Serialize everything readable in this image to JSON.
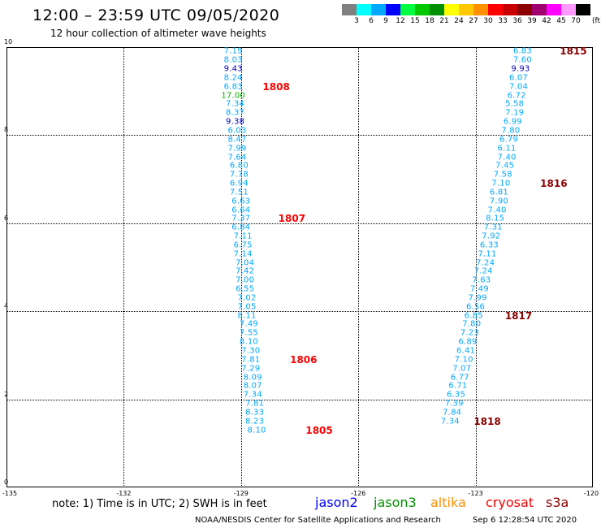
{
  "header": {
    "title": "12:00 – 23:59 UTC 09/05/2020",
    "subtitle": "12 hour collection of altimeter wave heights"
  },
  "legend": {
    "colors": [
      "#808080",
      "#00ffff",
      "#00a8ff",
      "#0000ff",
      "#00ff40",
      "#00c800",
      "#009000",
      "#ffff00",
      "#ffc800",
      "#ff9000",
      "#ff0000",
      "#c80000",
      "#8b0000",
      "#a00070",
      "#ff00ff",
      "#ff99ff",
      "#000000"
    ],
    "labels": [
      "3",
      "6",
      "9",
      "12",
      "15",
      "18",
      "21",
      "24",
      "27",
      "30",
      "33",
      "36",
      "39",
      "42",
      "45",
      "70"
    ],
    "unit": "(ft)"
  },
  "axes": {
    "x_ticks": [
      "-135",
      "-132",
      "-129",
      "-126",
      "-123",
      "-120"
    ],
    "y_ticks": [
      "10",
      "8",
      "6",
      "4",
      "2",
      "0"
    ]
  },
  "map_data": {
    "type": "altimeter_track_map",
    "x_range": [
      -135,
      -120
    ],
    "y_range": [
      0,
      10
    ],
    "tracks": [
      {
        "name": "track-west",
        "points": [
          {
            "lon": -129.2,
            "lat": 9.9,
            "v": "7.19",
            "c": "#00a8ff"
          },
          {
            "lon": -129.2,
            "lat": 9.7,
            "v": "8.03",
            "c": "#00a8ff"
          },
          {
            "lon": -129.2,
            "lat": 9.5,
            "v": "9.43",
            "c": "#0000c0"
          },
          {
            "lon": -129.2,
            "lat": 9.3,
            "v": "8.24",
            "c": "#00a8ff"
          },
          {
            "lon": -129.2,
            "lat": 9.1,
            "v": "6.83",
            "c": "#00a8ff"
          },
          {
            "lon": -129.2,
            "lat": 8.9,
            "v": "17.00",
            "c": "#00b000"
          },
          {
            "lon": -129.15,
            "lat": 8.7,
            "v": "7.34",
            "c": "#00a8ff"
          },
          {
            "lon": -129.15,
            "lat": 8.5,
            "v": "8.37",
            "c": "#00a8ff"
          },
          {
            "lon": -129.15,
            "lat": 8.3,
            "v": "9.38",
            "c": "#0000c0"
          },
          {
            "lon": -129.1,
            "lat": 8.1,
            "v": "6.03",
            "c": "#00a8ff"
          },
          {
            "lon": -129.1,
            "lat": 7.9,
            "v": "8.47",
            "c": "#00a8ff"
          },
          {
            "lon": -129.1,
            "lat": 7.7,
            "v": "7.99",
            "c": "#00a8ff"
          },
          {
            "lon": -129.1,
            "lat": 7.5,
            "v": "7.64",
            "c": "#00a8ff"
          },
          {
            "lon": -129.05,
            "lat": 7.3,
            "v": "6.80",
            "c": "#00a8ff"
          },
          {
            "lon": -129.05,
            "lat": 7.1,
            "v": "7.78",
            "c": "#00a8ff"
          },
          {
            "lon": -129.05,
            "lat": 6.9,
            "v": "6.94",
            "c": "#00a8ff"
          },
          {
            "lon": -129.05,
            "lat": 6.7,
            "v": "7.51",
            "c": "#00a8ff"
          },
          {
            "lon": -129.0,
            "lat": 6.5,
            "v": "6.63",
            "c": "#00a8ff"
          },
          {
            "lon": -129.0,
            "lat": 6.3,
            "v": "6.64",
            "c": "#00a8ff"
          },
          {
            "lon": -129.0,
            "lat": 6.1,
            "v": "7.37",
            "c": "#00a8ff"
          },
          {
            "lon": -129.0,
            "lat": 5.9,
            "v": "6.84",
            "c": "#00a8ff"
          },
          {
            "lon": -128.95,
            "lat": 5.7,
            "v": "7.11",
            "c": "#00a8ff"
          },
          {
            "lon": -128.95,
            "lat": 5.5,
            "v": "6.75",
            "c": "#00a8ff"
          },
          {
            "lon": -128.95,
            "lat": 5.3,
            "v": "7.14",
            "c": "#00a8ff"
          },
          {
            "lon": -128.9,
            "lat": 5.1,
            "v": "7.04",
            "c": "#00a8ff"
          },
          {
            "lon": -128.9,
            "lat": 4.9,
            "v": "7.42",
            "c": "#00a8ff"
          },
          {
            "lon": -128.9,
            "lat": 4.7,
            "v": "7.00",
            "c": "#00a8ff"
          },
          {
            "lon": -128.9,
            "lat": 4.5,
            "v": "6.55",
            "c": "#00a8ff"
          },
          {
            "lon": -128.85,
            "lat": 4.3,
            "v": "7.02",
            "c": "#00a8ff"
          },
          {
            "lon": -128.85,
            "lat": 4.1,
            "v": "7.05",
            "c": "#00a8ff"
          },
          {
            "lon": -128.85,
            "lat": 3.9,
            "v": "8.11",
            "c": "#00a8ff"
          },
          {
            "lon": -128.8,
            "lat": 3.7,
            "v": "7.49",
            "c": "#00a8ff"
          },
          {
            "lon": -128.8,
            "lat": 3.5,
            "v": "7.55",
            "c": "#00a8ff"
          },
          {
            "lon": -128.8,
            "lat": 3.3,
            "v": "8.10",
            "c": "#00a8ff"
          },
          {
            "lon": -128.75,
            "lat": 3.1,
            "v": "7.30",
            "c": "#00a8ff"
          },
          {
            "lon": -128.75,
            "lat": 2.9,
            "v": "7.81",
            "c": "#00a8ff"
          },
          {
            "lon": -128.75,
            "lat": 2.7,
            "v": "7.29",
            "c": "#00a8ff"
          },
          {
            "lon": -128.7,
            "lat": 2.5,
            "v": "8.09",
            "c": "#00a8ff"
          },
          {
            "lon": -128.7,
            "lat": 2.3,
            "v": "8.07",
            "c": "#00a8ff"
          },
          {
            "lon": -128.7,
            "lat": 2.1,
            "v": "7.34",
            "c": "#00a8ff"
          },
          {
            "lon": -128.65,
            "lat": 1.9,
            "v": "7.81",
            "c": "#00a8ff"
          },
          {
            "lon": -128.65,
            "lat": 1.7,
            "v": "8.33",
            "c": "#00a8ff"
          },
          {
            "lon": -128.65,
            "lat": 1.5,
            "v": "8.23",
            "c": "#00a8ff"
          },
          {
            "lon": -128.6,
            "lat": 1.3,
            "v": "8.10",
            "c": "#00a8ff"
          }
        ]
      },
      {
        "name": "track-east",
        "points": [
          {
            "lon": -121.8,
            "lat": 9.9,
            "v": "6.83",
            "c": "#00a8ff"
          },
          {
            "lon": -121.8,
            "lat": 9.7,
            "v": "7.60",
            "c": "#00a8ff"
          },
          {
            "lon": -121.85,
            "lat": 9.5,
            "v": "9.93",
            "c": "#0000c0"
          },
          {
            "lon": -121.9,
            "lat": 9.3,
            "v": "6.07",
            "c": "#00a8ff"
          },
          {
            "lon": -121.9,
            "lat": 9.1,
            "v": "7.04",
            "c": "#00a8ff"
          },
          {
            "lon": -121.95,
            "lat": 8.9,
            "v": "6.72",
            "c": "#00a8ff"
          },
          {
            "lon": -122.0,
            "lat": 8.7,
            "v": "5.58",
            "c": "#00a8ff"
          },
          {
            "lon": -122.0,
            "lat": 8.5,
            "v": "7.19",
            "c": "#00a8ff"
          },
          {
            "lon": -122.05,
            "lat": 8.3,
            "v": "6.99",
            "c": "#00a8ff"
          },
          {
            "lon": -122.1,
            "lat": 8.1,
            "v": "7.80",
            "c": "#00a8ff"
          },
          {
            "lon": -122.15,
            "lat": 7.9,
            "v": "6.79",
            "c": "#00a8ff"
          },
          {
            "lon": -122.2,
            "lat": 7.7,
            "v": "6.11",
            "c": "#00a8ff"
          },
          {
            "lon": -122.2,
            "lat": 7.5,
            "v": "7.40",
            "c": "#00a8ff"
          },
          {
            "lon": -122.25,
            "lat": 7.3,
            "v": "7.45",
            "c": "#00a8ff"
          },
          {
            "lon": -122.3,
            "lat": 7.1,
            "v": "7.58",
            "c": "#00a8ff"
          },
          {
            "lon": -122.35,
            "lat": 6.9,
            "v": "7.10",
            "c": "#00a8ff"
          },
          {
            "lon": -122.4,
            "lat": 6.7,
            "v": "6.81",
            "c": "#00a8ff"
          },
          {
            "lon": -122.4,
            "lat": 6.5,
            "v": "7.90",
            "c": "#00a8ff"
          },
          {
            "lon": -122.45,
            "lat": 6.3,
            "v": "7.40",
            "c": "#00a8ff"
          },
          {
            "lon": -122.5,
            "lat": 6.1,
            "v": "8.15",
            "c": "#00a8ff"
          },
          {
            "lon": -122.55,
            "lat": 5.9,
            "v": "7.31",
            "c": "#00a8ff"
          },
          {
            "lon": -122.6,
            "lat": 5.7,
            "v": "7.92",
            "c": "#00a8ff"
          },
          {
            "lon": -122.65,
            "lat": 5.5,
            "v": "6.33",
            "c": "#00a8ff"
          },
          {
            "lon": -122.7,
            "lat": 5.3,
            "v": "7.11",
            "c": "#00a8ff"
          },
          {
            "lon": -122.75,
            "lat": 5.1,
            "v": "7.24",
            "c": "#00a8ff"
          },
          {
            "lon": -122.8,
            "lat": 4.9,
            "v": "7.24",
            "c": "#00a8ff"
          },
          {
            "lon": -122.85,
            "lat": 4.7,
            "v": "7.63",
            "c": "#00a8ff"
          },
          {
            "lon": -122.9,
            "lat": 4.5,
            "v": "7.49",
            "c": "#00a8ff"
          },
          {
            "lon": -122.95,
            "lat": 4.3,
            "v": "7.99",
            "c": "#00a8ff"
          },
          {
            "lon": -123.0,
            "lat": 4.1,
            "v": "6.56",
            "c": "#00a8ff"
          },
          {
            "lon": -123.05,
            "lat": 3.9,
            "v": "6.85",
            "c": "#00a8ff"
          },
          {
            "lon": -123.1,
            "lat": 3.7,
            "v": "7.80",
            "c": "#00a8ff"
          },
          {
            "lon": -123.15,
            "lat": 3.5,
            "v": "7.23",
            "c": "#00a8ff"
          },
          {
            "lon": -123.2,
            "lat": 3.3,
            "v": "6.89",
            "c": "#00a8ff"
          },
          {
            "lon": -123.25,
            "lat": 3.1,
            "v": "6.41",
            "c": "#00a8ff"
          },
          {
            "lon": -123.3,
            "lat": 2.9,
            "v": "7.10",
            "c": "#00a8ff"
          },
          {
            "lon": -123.35,
            "lat": 2.7,
            "v": "7.07",
            "c": "#00a8ff"
          },
          {
            "lon": -123.4,
            "lat": 2.5,
            "v": "6.77",
            "c": "#00a8ff"
          },
          {
            "lon": -123.45,
            "lat": 2.3,
            "v": "6.71",
            "c": "#00a8ff"
          },
          {
            "lon": -123.5,
            "lat": 2.1,
            "v": "6.35",
            "c": "#00a8ff"
          },
          {
            "lon": -123.55,
            "lat": 1.9,
            "v": "7.39",
            "c": "#00a8ff"
          },
          {
            "lon": -123.6,
            "lat": 1.7,
            "v": "7.84",
            "c": "#00a8ff"
          },
          {
            "lon": -123.65,
            "lat": 1.5,
            "v": "7.34",
            "c": "#00a8ff"
          }
        ]
      }
    ],
    "pass_labels": [
      {
        "text": "1808",
        "lon": -128.1,
        "lat": 9.1,
        "c": "#ff0000"
      },
      {
        "text": "1807",
        "lon": -127.7,
        "lat": 6.1,
        "c": "#ff0000"
      },
      {
        "text": "1806",
        "lon": -127.4,
        "lat": 2.9,
        "c": "#ff0000"
      },
      {
        "text": "1805",
        "lon": -127.0,
        "lat": 1.3,
        "c": "#ff0000"
      },
      {
        "text": "1815",
        "lon": -120.5,
        "lat": 9.9,
        "c": "#8b0000"
      },
      {
        "text": "1816",
        "lon": -121.0,
        "lat": 6.9,
        "c": "#8b0000"
      },
      {
        "text": "1817",
        "lon": -121.9,
        "lat": 3.9,
        "c": "#8b0000"
      },
      {
        "text": "1818",
        "lon": -122.7,
        "lat": 1.5,
        "c": "#8b0000"
      }
    ]
  },
  "footer": {
    "note": "note: 1) Time is in UTC; 2) SWH is in feet",
    "satellites": [
      {
        "name": "jason2",
        "color": "#0000ff"
      },
      {
        "name": "jason3",
        "color": "#009000"
      },
      {
        "name": "altika",
        "color": "#ff9000"
      },
      {
        "name": "cryosat",
        "color": "#ff0000"
      },
      {
        "name": "s3a",
        "color": "#8b0000"
      }
    ],
    "credit": "NOAA/NESDIS Center for Satellite Applications and Research",
    "timestamp": "Sep  6 12:28:54 UTC 2020"
  }
}
